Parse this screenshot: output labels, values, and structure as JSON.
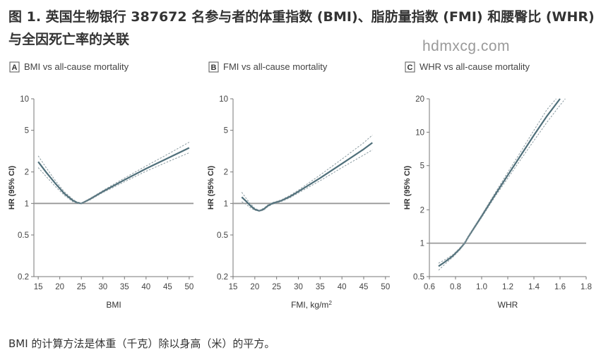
{
  "figure": {
    "title": "图 1. 英国生物银行 387672 名参与者的体重指数 (BMI)、脂肪量指数 (FMI) 和腰臀比 (WHR) 与全因死亡率的关联",
    "watermark": "hdmxcg.com",
    "caption": "BMI 的计算方法是体重（千克）除以身高（米）的平方。"
  },
  "colors": {
    "curve": "#4f6f7a",
    "ci": "#8a9aa0",
    "reference": "#9a9a9a",
    "axis": "#777777"
  },
  "chart_data": [
    {
      "panel": "A",
      "title": "BMI vs all-cause mortality",
      "type": "line",
      "xlabel": "BMI",
      "ylabel": "HR (95% CI)",
      "xlim": [
        14,
        51
      ],
      "ylim": [
        0.2,
        10
      ],
      "yscale": "log",
      "xticks": [
        15,
        20,
        25,
        30,
        35,
        40,
        45,
        50
      ],
      "yticks": [
        0.2,
        0.5,
        1,
        2,
        5,
        10
      ],
      "reference_line": 1,
      "series": [
        {
          "role": "estimate",
          "x": [
            15,
            17,
            19,
            21,
            23,
            24,
            25,
            27,
            30,
            35,
            40,
            45,
            50
          ],
          "y": [
            2.5,
            1.95,
            1.55,
            1.25,
            1.07,
            1.02,
            1.0,
            1.1,
            1.3,
            1.68,
            2.15,
            2.7,
            3.4
          ]
        },
        {
          "role": "ci_upper",
          "x": [
            15,
            17,
            19,
            21,
            23,
            24,
            25,
            27,
            30,
            35,
            40,
            45,
            50
          ],
          "y": [
            2.85,
            2.15,
            1.65,
            1.3,
            1.1,
            1.03,
            1.01,
            1.12,
            1.33,
            1.75,
            2.28,
            2.95,
            3.85
          ]
        },
        {
          "role": "ci_lower",
          "x": [
            15,
            17,
            19,
            21,
            23,
            24,
            25,
            27,
            30,
            35,
            40,
            45,
            50
          ],
          "y": [
            2.2,
            1.78,
            1.45,
            1.2,
            1.04,
            1.0,
            0.99,
            1.08,
            1.27,
            1.61,
            2.03,
            2.5,
            3.05
          ]
        }
      ]
    },
    {
      "panel": "B",
      "title": "FMI vs all-cause mortality",
      "type": "line",
      "xlabel": "FMI, kg/m",
      "xlabel_sup": "2",
      "ylabel": "HR (95% CI)",
      "xlim": [
        15,
        51
      ],
      "ylim": [
        0.2,
        10
      ],
      "yscale": "log",
      "xticks": [
        15,
        20,
        25,
        30,
        35,
        40,
        45,
        50
      ],
      "yticks": [
        0.2,
        0.5,
        1,
        2,
        5,
        10
      ],
      "reference_line": 1,
      "series": [
        {
          "role": "estimate",
          "x": [
            17,
            18,
            19,
            20,
            21,
            22,
            23,
            24,
            26,
            28,
            30,
            35,
            40,
            45,
            47
          ],
          "y": [
            1.15,
            1.05,
            0.95,
            0.88,
            0.85,
            0.88,
            0.95,
            1.0,
            1.06,
            1.16,
            1.3,
            1.75,
            2.4,
            3.3,
            3.8
          ]
        },
        {
          "role": "ci_upper",
          "x": [
            17,
            18,
            19,
            20,
            21,
            22,
            23,
            24,
            26,
            28,
            30,
            35,
            40,
            45,
            47
          ],
          "y": [
            1.28,
            1.12,
            0.99,
            0.9,
            0.86,
            0.9,
            0.97,
            1.02,
            1.08,
            1.19,
            1.34,
            1.87,
            2.65,
            3.8,
            4.5
          ]
        },
        {
          "role": "ci_lower",
          "x": [
            17,
            18,
            19,
            20,
            21,
            22,
            23,
            24,
            26,
            28,
            30,
            35,
            40,
            45,
            47
          ],
          "y": [
            1.04,
            0.98,
            0.91,
            0.86,
            0.84,
            0.86,
            0.93,
            0.98,
            1.04,
            1.13,
            1.26,
            1.65,
            2.2,
            2.9,
            3.25
          ]
        }
      ]
    },
    {
      "panel": "C",
      "title": "WHR vs all-cause mortality",
      "type": "line",
      "xlabel": "WHR",
      "ylabel": "HR (95% CI)",
      "xlim": [
        0.6,
        1.8
      ],
      "ylim": [
        0.5,
        20
      ],
      "yscale": "log",
      "xticks": [
        "0.6",
        "0.8",
        "1.0",
        "1.2",
        "1.4",
        "1.6",
        "1.8"
      ],
      "yticks": [
        0.5,
        1,
        2,
        5,
        10,
        20
      ],
      "reference_line": 1,
      "series": [
        {
          "role": "estimate",
          "x": [
            0.67,
            0.72,
            0.78,
            0.83,
            0.87,
            0.9,
            1.0,
            1.1,
            1.2,
            1.3,
            1.4,
            1.5,
            1.6
          ],
          "y": [
            0.62,
            0.68,
            0.77,
            0.88,
            1.0,
            1.15,
            1.75,
            2.7,
            4.1,
            6.2,
            9.4,
            14.0,
            20.0
          ]
        },
        {
          "role": "ci_upper",
          "x": [
            0.67,
            0.72,
            0.78,
            0.83,
            0.87,
            0.9,
            1.0,
            1.1,
            1.2,
            1.3,
            1.4,
            1.5,
            1.57
          ],
          "y": [
            0.66,
            0.71,
            0.79,
            0.9,
            1.01,
            1.17,
            1.8,
            2.8,
            4.35,
            6.7,
            10.4,
            16.0,
            20.0
          ]
        },
        {
          "role": "ci_lower",
          "x": [
            0.67,
            0.72,
            0.78,
            0.83,
            0.87,
            0.9,
            1.0,
            1.1,
            1.2,
            1.3,
            1.4,
            1.5,
            1.6,
            1.64
          ],
          "y": [
            0.57,
            0.65,
            0.75,
            0.86,
            0.99,
            1.13,
            1.7,
            2.6,
            3.85,
            5.7,
            8.4,
            12.3,
            17.5,
            20.0
          ]
        }
      ]
    }
  ]
}
